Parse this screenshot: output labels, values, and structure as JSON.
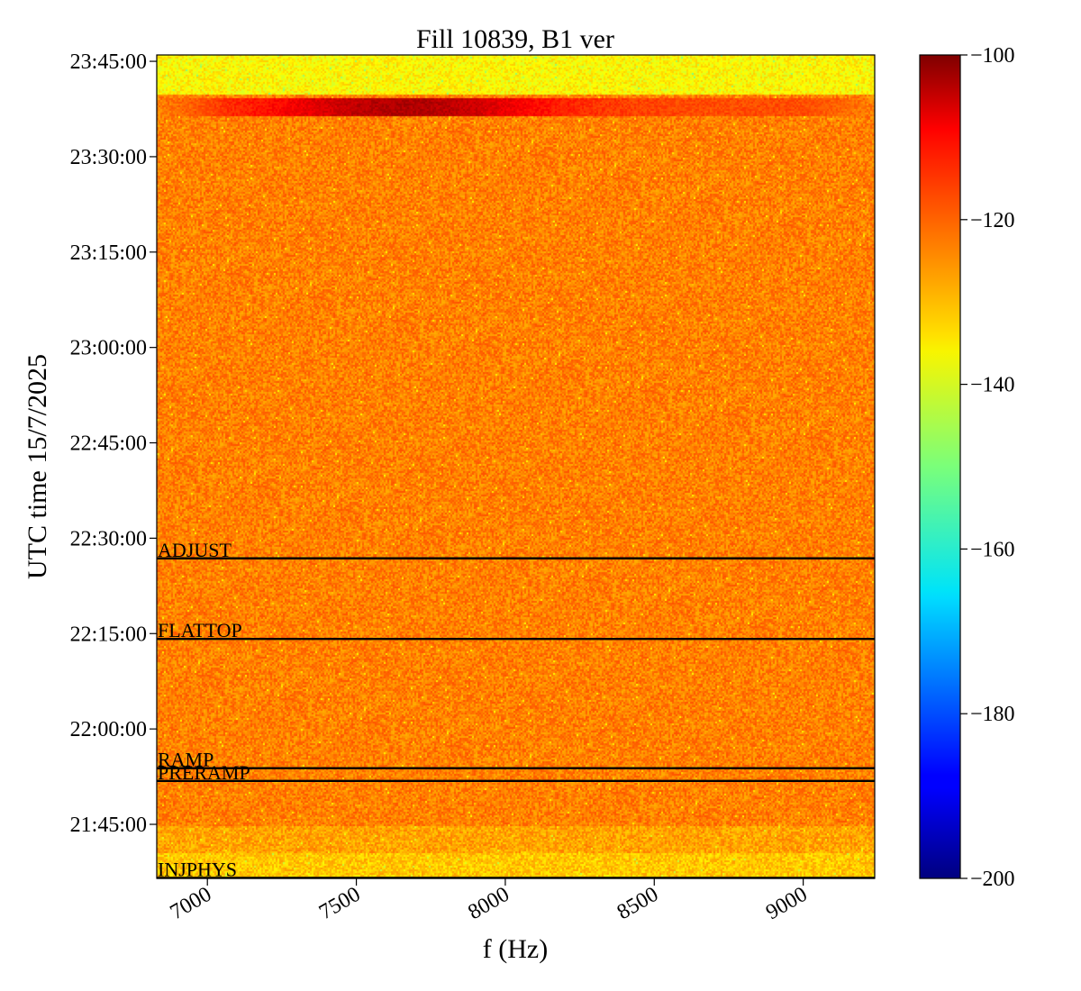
{
  "chart_data": {
    "type": "heatmap",
    "title": "Fill 10839, B1 ver",
    "xlabel": "f (Hz)",
    "ylabel": "UTC time 15/7/2025",
    "xlim": [
      6830,
      9240
    ],
    "x_ticks": [
      {
        "value": 7000,
        "label": "7000"
      },
      {
        "value": 7500,
        "label": "7500"
      },
      {
        "value": 8000,
        "label": "8000"
      },
      {
        "value": 8500,
        "label": "8500"
      },
      {
        "value": 9000,
        "label": "9000"
      }
    ],
    "ylim": [
      "21:36:30",
      "23:46:00"
    ],
    "y_ticks": [
      {
        "value": "21:45:00",
        "label": "21:45:00"
      },
      {
        "value": "22:00:00",
        "label": "22:00:00"
      },
      {
        "value": "22:15:00",
        "label": "22:15:00"
      },
      {
        "value": "22:30:00",
        "label": "22:30:00"
      },
      {
        "value": "22:45:00",
        "label": "22:45:00"
      },
      {
        "value": "23:00:00",
        "label": "23:00:00"
      },
      {
        "value": "23:15:00",
        "label": "23:15:00"
      },
      {
        "value": "23:30:00",
        "label": "23:30:00"
      },
      {
        "value": "23:45:00",
        "label": "23:45:00"
      }
    ],
    "colorbar": {
      "colormap": "jet",
      "min": -200,
      "max": -100,
      "ticks": [
        {
          "value": -100,
          "label": "−100"
        },
        {
          "value": -120,
          "label": "−120"
        },
        {
          "value": -140,
          "label": "−140"
        },
        {
          "value": -160,
          "label": "−160"
        },
        {
          "value": -180,
          "label": "−180"
        },
        {
          "value": -200,
          "label": "−200"
        }
      ]
    },
    "background_level": -125,
    "features": [
      {
        "time_range": [
          "23:37:00",
          "23:38:30"
        ],
        "peak_frequency": 7660,
        "peak_level": -103
      },
      {
        "time_range": [
          "23:40:00",
          "23:46:00"
        ],
        "level": -137
      }
    ],
    "events": [
      {
        "label": "ADJUST",
        "time": "22:26:50"
      },
      {
        "label": "FLATTOP",
        "time": "22:14:10"
      },
      {
        "label": "RAMP",
        "time": "21:53:50"
      },
      {
        "label": "PRERAMP",
        "time": "21:51:50"
      },
      {
        "label": "INJPHYS",
        "time": "21:36:35"
      }
    ]
  }
}
